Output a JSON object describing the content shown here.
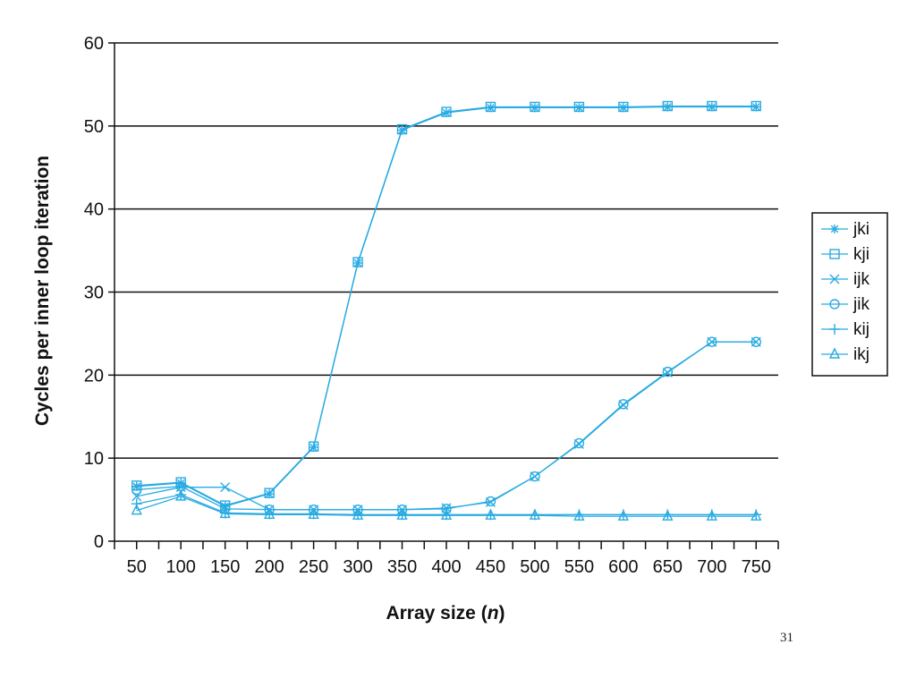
{
  "page_number": "31",
  "chart_data": {
    "type": "line",
    "title": "",
    "xlabel": "Array size",
    "xlabel_var": "n",
    "ylabel": "Cycles per inner loop iteration",
    "ylim": [
      0,
      60
    ],
    "yticks": [
      0,
      10,
      20,
      30,
      40,
      50,
      60
    ],
    "xlim": [
      25,
      775
    ],
    "xticks": [
      50,
      100,
      150,
      200,
      250,
      300,
      350,
      400,
      450,
      500,
      550,
      600,
      650,
      700,
      750
    ],
    "grid": "horizontal",
    "legend_position": "right",
    "line_color": "#29ABE2",
    "x": [
      50,
      100,
      150,
      200,
      250,
      300,
      350,
      400,
      450,
      500,
      550,
      600,
      650,
      700,
      750
    ],
    "series": [
      {
        "name": "jki",
        "marker": "asterisk",
        "values": [
          6.6,
          7.0,
          4.2,
          5.7,
          11.3,
          33.5,
          49.5,
          51.6,
          52.2,
          52.2,
          52.2,
          52.2,
          52.3,
          52.3,
          52.3
        ]
      },
      {
        "name": "kji",
        "marker": "square",
        "values": [
          6.7,
          7.1,
          4.3,
          5.8,
          11.4,
          33.6,
          49.6,
          51.7,
          52.3,
          52.3,
          52.3,
          52.3,
          52.4,
          52.4,
          52.4
        ]
      },
      {
        "name": "ijk",
        "marker": "x",
        "values": [
          5.4,
          6.5,
          6.5,
          3.8,
          3.8,
          3.8,
          3.8,
          4.0,
          4.7,
          7.8,
          11.7,
          16.4,
          20.3,
          24.0,
          24.0
        ]
      },
      {
        "name": "jik",
        "marker": "circle",
        "values": [
          6.2,
          6.6,
          3.9,
          3.8,
          3.8,
          3.8,
          3.8,
          3.9,
          4.8,
          7.8,
          11.8,
          16.5,
          20.4,
          24.0,
          24.0
        ]
      },
      {
        "name": "kij",
        "marker": "plus",
        "values": [
          4.5,
          5.6,
          3.4,
          3.3,
          3.3,
          3.2,
          3.2,
          3.2,
          3.2,
          3.2,
          3.2,
          3.2,
          3.2,
          3.2,
          3.2
        ]
      },
      {
        "name": "ikj",
        "marker": "triangle",
        "values": [
          3.7,
          5.4,
          3.3,
          3.2,
          3.2,
          3.1,
          3.1,
          3.1,
          3.1,
          3.1,
          3.0,
          3.0,
          3.0,
          3.0,
          3.0
        ]
      }
    ]
  }
}
